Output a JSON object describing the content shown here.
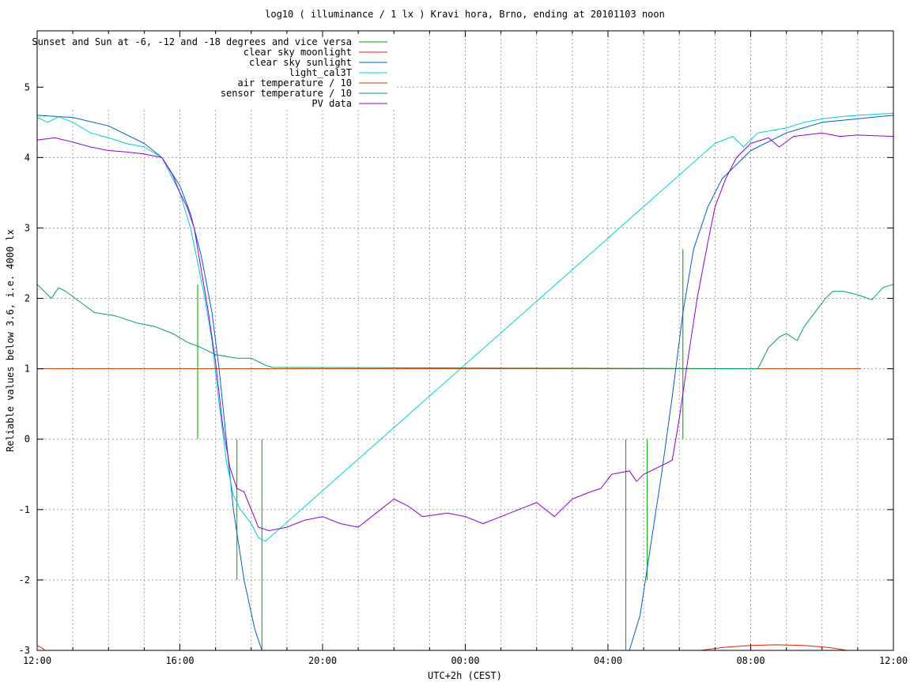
{
  "chart_data": {
    "type": "line",
    "title": "log10 ( illuminance / 1 lx ) Kravi hora, Brno, ending at 20101103 noon",
    "xlabel": "UTC+2h (CEST)",
    "ylabel": "Reliable values below 3.6, i.e. 4000 lx",
    "xlim": [
      0,
      24
    ],
    "ylim": [
      -3,
      5.8
    ],
    "x_major_ticks": [
      {
        "v": 0,
        "label": "12:00"
      },
      {
        "v": 4,
        "label": "16:00"
      },
      {
        "v": 8,
        "label": "20:00"
      },
      {
        "v": 12,
        "label": "00:00"
      },
      {
        "v": 16,
        "label": "04:00"
      },
      {
        "v": 20,
        "label": "08:00"
      },
      {
        "v": 24,
        "label": "12:00"
      }
    ],
    "x_minor_step": 1,
    "y_ticks": [
      {
        "v": -3,
        "label": "-3"
      },
      {
        "v": -2,
        "label": "-2"
      },
      {
        "v": -1,
        "label": "-1"
      },
      {
        "v": 0,
        "label": "0"
      },
      {
        "v": 1,
        "label": "1"
      },
      {
        "v": 2,
        "label": "2"
      },
      {
        "v": 3,
        "label": "3"
      },
      {
        "v": 4,
        "label": "4"
      },
      {
        "v": 5,
        "label": "5"
      }
    ],
    "grid": true,
    "legend_position": "top-left",
    "series": [
      {
        "name": "Sunset and Sun at -6, -12 and -18 degrees and vice versa",
        "color": "#00a000",
        "kind": "impulses",
        "bars": [
          {
            "x": 4.5,
            "y0": 0,
            "y1": 2.2
          },
          {
            "x": 5.6,
            "y0": 0,
            "y1": -2.0
          },
          {
            "x": 6.3,
            "y0": 0,
            "y1": -3.0
          },
          {
            "x": 16.5,
            "y0": 0,
            "y1": -3.0
          },
          {
            "x": 17.1,
            "y0": 0,
            "y1": -2.0
          },
          {
            "x": 18.1,
            "y0": 0,
            "y1": 2.7
          }
        ]
      },
      {
        "name": "clear sky moonlight",
        "color": "#e02000",
        "kind": "line",
        "points": [
          [
            0,
            -2.93
          ],
          [
            0.15,
            -2.97
          ],
          [
            0.22,
            -3.0
          ],
          [
            18.6,
            -3.0
          ],
          [
            19.2,
            -2.96
          ],
          [
            20.0,
            -2.93
          ],
          [
            20.7,
            -2.92
          ],
          [
            21.5,
            -2.93
          ],
          [
            22.2,
            -2.96
          ],
          [
            22.7,
            -3.0
          ]
        ]
      },
      {
        "name": "clear sky sunlight",
        "color": "#0060c0",
        "kind": "line",
        "points": [
          [
            0,
            4.6
          ],
          [
            1,
            4.57
          ],
          [
            2,
            4.45
          ],
          [
            3,
            4.2
          ],
          [
            3.5,
            4.0
          ],
          [
            4.0,
            3.6
          ],
          [
            4.3,
            3.2
          ],
          [
            4.6,
            2.6
          ],
          [
            4.9,
            1.8
          ],
          [
            5.1,
            1.0
          ],
          [
            5.3,
            0.0
          ],
          [
            5.5,
            -1.0
          ],
          [
            5.8,
            -2.0
          ],
          [
            6.1,
            -2.7
          ],
          [
            6.3,
            -3.0
          ],
          [
            16.6,
            -3.0
          ],
          [
            16.9,
            -2.5
          ],
          [
            17.2,
            -1.5
          ],
          [
            17.5,
            -0.5
          ],
          [
            17.8,
            0.6
          ],
          [
            18.1,
            1.8
          ],
          [
            18.4,
            2.7
          ],
          [
            18.8,
            3.3
          ],
          [
            19.2,
            3.7
          ],
          [
            20.0,
            4.1
          ],
          [
            21.0,
            4.35
          ],
          [
            22.0,
            4.5
          ],
          [
            24,
            4.6
          ]
        ]
      },
      {
        "name": "light_cal3T",
        "color": "#00d0d0",
        "kind": "line",
        "points": [
          [
            0,
            4.57
          ],
          [
            0.3,
            4.5
          ],
          [
            0.6,
            4.58
          ],
          [
            1.0,
            4.5
          ],
          [
            1.5,
            4.35
          ],
          [
            2.0,
            4.28
          ],
          [
            2.5,
            4.2
          ],
          [
            3.0,
            4.15
          ],
          [
            3.5,
            4.0
          ],
          [
            3.8,
            3.7
          ],
          [
            4.0,
            3.5
          ],
          [
            4.3,
            3.0
          ],
          [
            4.5,
            2.5
          ],
          [
            4.7,
            2.0
          ],
          [
            4.9,
            1.4
          ],
          [
            5.1,
            0.5
          ],
          [
            5.3,
            -0.3
          ],
          [
            5.5,
            -0.8
          ],
          [
            5.7,
            -1.0
          ],
          [
            6.0,
            -1.2
          ],
          [
            6.2,
            -1.4
          ],
          [
            6.4,
            -1.45
          ],
          [
            19.0,
            4.2
          ],
          [
            19.5,
            4.3
          ],
          [
            19.8,
            4.15
          ],
          [
            20.2,
            4.35
          ],
          [
            21.0,
            4.42
          ],
          [
            21.5,
            4.5
          ],
          [
            22.0,
            4.55
          ],
          [
            22.5,
            4.58
          ],
          [
            23.0,
            4.6
          ],
          [
            24,
            4.63
          ]
        ]
      },
      {
        "name": "air temperature / 10",
        "color": "#c04000",
        "kind": "line",
        "points": [
          [
            0,
            1.0
          ],
          [
            23.1,
            1.0
          ]
        ]
      },
      {
        "name": "sensor temperature / 10",
        "color": "#00a060",
        "kind": "line",
        "points": [
          [
            0,
            2.2
          ],
          [
            0.4,
            2.0
          ],
          [
            0.6,
            2.15
          ],
          [
            0.8,
            2.1
          ],
          [
            1.2,
            1.95
          ],
          [
            1.6,
            1.8
          ],
          [
            2.2,
            1.75
          ],
          [
            2.8,
            1.65
          ],
          [
            3.3,
            1.6
          ],
          [
            3.8,
            1.5
          ],
          [
            4.2,
            1.38
          ],
          [
            4.6,
            1.3
          ],
          [
            5.0,
            1.2
          ],
          [
            5.6,
            1.15
          ],
          [
            6.0,
            1.15
          ],
          [
            6.4,
            1.05
          ],
          [
            6.6,
            1.02
          ],
          [
            20.2,
            1.0
          ],
          [
            20.5,
            1.3
          ],
          [
            20.8,
            1.45
          ],
          [
            21.0,
            1.5
          ],
          [
            21.3,
            1.4
          ],
          [
            21.5,
            1.6
          ],
          [
            21.8,
            1.8
          ],
          [
            22.1,
            2.0
          ],
          [
            22.3,
            2.1
          ],
          [
            22.6,
            2.1
          ],
          [
            23.0,
            2.05
          ],
          [
            23.4,
            1.98
          ],
          [
            23.7,
            2.15
          ],
          [
            24,
            2.2
          ]
        ]
      },
      {
        "name": "PV data",
        "color": "#9000d0",
        "kind": "line",
        "points": [
          [
            0,
            4.25
          ],
          [
            0.5,
            4.28
          ],
          [
            1.0,
            4.22
          ],
          [
            1.5,
            4.15
          ],
          [
            2.0,
            4.1
          ],
          [
            2.5,
            4.08
          ],
          [
            3.0,
            4.05
          ],
          [
            3.5,
            4.0
          ],
          [
            3.8,
            3.75
          ],
          [
            4.0,
            3.5
          ],
          [
            4.2,
            3.3
          ],
          [
            4.4,
            3.0
          ],
          [
            4.6,
            2.4
          ],
          [
            4.8,
            1.8
          ],
          [
            5.0,
            1.1
          ],
          [
            5.2,
            0.2
          ],
          [
            5.4,
            -0.4
          ],
          [
            5.6,
            -0.7
          ],
          [
            5.8,
            -0.75
          ],
          [
            6.0,
            -1.0
          ],
          [
            6.2,
            -1.25
          ],
          [
            6.5,
            -1.3
          ],
          [
            7.0,
            -1.25
          ],
          [
            7.5,
            -1.15
          ],
          [
            8.0,
            -1.1
          ],
          [
            8.5,
            -1.2
          ],
          [
            9.0,
            -1.25
          ],
          [
            9.5,
            -1.05
          ],
          [
            10.0,
            -0.85
          ],
          [
            10.4,
            -0.95
          ],
          [
            10.8,
            -1.1
          ],
          [
            11.5,
            -1.05
          ],
          [
            12.0,
            -1.1
          ],
          [
            12.5,
            -1.2
          ],
          [
            13.0,
            -1.1
          ],
          [
            13.5,
            -1.0
          ],
          [
            14.0,
            -0.9
          ],
          [
            14.5,
            -1.1
          ],
          [
            15.0,
            -0.85
          ],
          [
            15.5,
            -0.75
          ],
          [
            15.8,
            -0.7
          ],
          [
            16.1,
            -0.5
          ],
          [
            16.6,
            -0.45
          ],
          [
            16.8,
            -0.6
          ],
          [
            17.0,
            -0.5
          ],
          [
            17.4,
            -0.4
          ],
          [
            17.8,
            -0.3
          ],
          [
            18.0,
            0.3
          ],
          [
            18.2,
            1.0
          ],
          [
            18.5,
            2.0
          ],
          [
            18.8,
            2.8
          ],
          [
            19.0,
            3.3
          ],
          [
            19.3,
            3.7
          ],
          [
            19.6,
            4.0
          ],
          [
            20.0,
            4.2
          ],
          [
            20.5,
            4.28
          ],
          [
            20.8,
            4.15
          ],
          [
            21.2,
            4.3
          ],
          [
            22.0,
            4.35
          ],
          [
            22.5,
            4.3
          ],
          [
            23.0,
            4.32
          ],
          [
            24,
            4.3
          ]
        ]
      }
    ]
  }
}
